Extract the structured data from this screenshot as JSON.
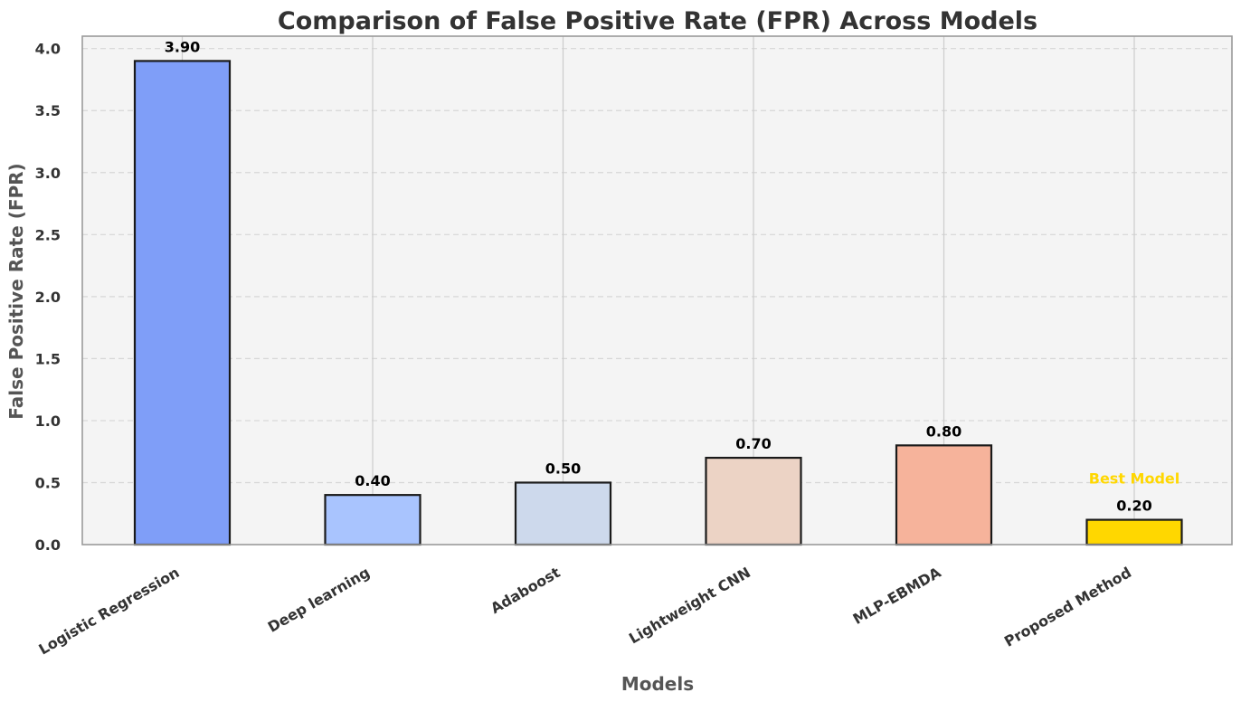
{
  "chart_data": {
    "type": "bar",
    "title": "Comparison of False Positive Rate (FPR) Across Models",
    "xlabel": "Models",
    "ylabel": "False Positive Rate (FPR)",
    "categories": [
      "Logistic Regression",
      "Deep learning",
      "Adaboost",
      "Lightweight CNN",
      "MLP-EBMDA",
      "Proposed Method"
    ],
    "values": [
      3.9,
      0.4,
      0.5,
      0.7,
      0.8,
      0.2
    ],
    "value_labels": [
      "3.90",
      "0.40",
      "0.50",
      "0.70",
      "0.80",
      "0.20"
    ],
    "bar_colors": [
      "#7f9ef8",
      "#a9c4fe",
      "#cdd9ec",
      "#ecd3c5",
      "#f6b39b",
      "#ffd700"
    ],
    "ylim": [
      0,
      4.1
    ],
    "yticks": [
      0.0,
      0.5,
      1.0,
      1.5,
      2.0,
      2.5,
      3.0,
      3.5,
      4.0
    ],
    "ytick_labels": [
      "0.0",
      "0.5",
      "1.0",
      "1.5",
      "2.0",
      "2.5",
      "3.0",
      "3.5",
      "4.0"
    ],
    "grid": true,
    "background": "#f4f4f4",
    "annotation": {
      "text": "Best Model",
      "category": "Proposed Method",
      "y": 0.5,
      "color": "#ffd700"
    }
  }
}
